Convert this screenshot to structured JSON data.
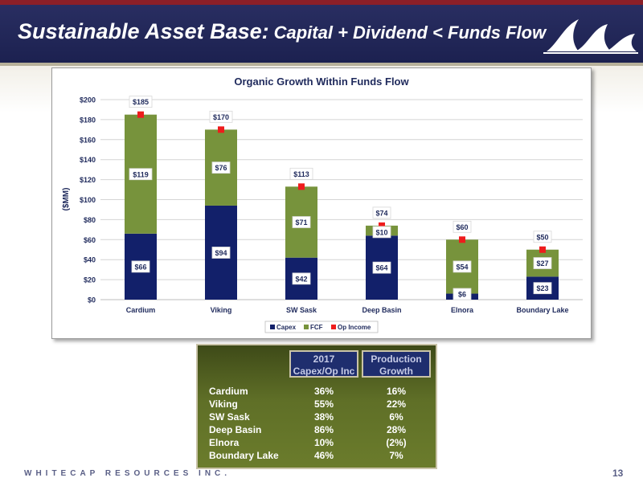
{
  "header": {
    "title_main": "Sustainable Asset Base:",
    "title_sub": "Capital + Dividend < Funds Flow"
  },
  "colors": {
    "capex": "#12206a",
    "fcf": "#77933c",
    "op_income": "#ee1c1c",
    "header_bg": "#222756"
  },
  "chart_data": {
    "type": "bar",
    "stacked": true,
    "title": "Organic Growth Within Funds Flow",
    "ylabel": "($MM)",
    "xlabel": "",
    "categories": [
      "Cardium",
      "Viking",
      "SW Sask",
      "Deep Basin",
      "Elnora",
      "Boundary Lake"
    ],
    "ylim": [
      0,
      200
    ],
    "yticks": [
      0,
      20,
      40,
      60,
      80,
      100,
      120,
      140,
      160,
      180,
      200
    ],
    "ytick_labels": [
      "$0",
      "$20",
      "$40",
      "$60",
      "$80",
      "$100",
      "$120",
      "$140",
      "$160",
      "$180",
      "$200"
    ],
    "grid": true,
    "legend": "bottom",
    "series": [
      {
        "name": "Capex",
        "type": "bar",
        "values": [
          66,
          94,
          42,
          64,
          6,
          23
        ],
        "labels": [
          "$66",
          "$94",
          "$42",
          "$64",
          "$6",
          "$23"
        ]
      },
      {
        "name": "FCF",
        "type": "bar",
        "values": [
          119,
          76,
          71,
          10,
          54,
          27
        ],
        "labels": [
          "$119",
          "$76",
          "$71",
          "$10",
          "$54",
          "$27"
        ]
      },
      {
        "name": "Op Income",
        "type": "scatter",
        "values": [
          185,
          170,
          113,
          74,
          60,
          50
        ],
        "labels": [
          "$185",
          "$170",
          "$113",
          "$74",
          "$60",
          "$50"
        ]
      }
    ]
  },
  "table": {
    "header1_line1": "2017",
    "header1_line2": "Capex/Op Inc",
    "header2_line1": "Production",
    "header2_line2": "Growth",
    "rows": [
      {
        "name": "Cardium",
        "capex_op": "36%",
        "growth": "16%"
      },
      {
        "name": "Viking",
        "capex_op": "55%",
        "growth": "22%"
      },
      {
        "name": "SW Sask",
        "capex_op": "38%",
        "growth": "6%"
      },
      {
        "name": "Deep Basin",
        "capex_op": "86%",
        "growth": "28%"
      },
      {
        "name": "Elnora",
        "capex_op": "10%",
        "growth": "(2%)"
      },
      {
        "name": "Boundary Lake",
        "capex_op": "46%",
        "growth": "7%"
      }
    ]
  },
  "footer": {
    "company": "WHITECAP RESOURCES INC.",
    "page_number": "13"
  }
}
